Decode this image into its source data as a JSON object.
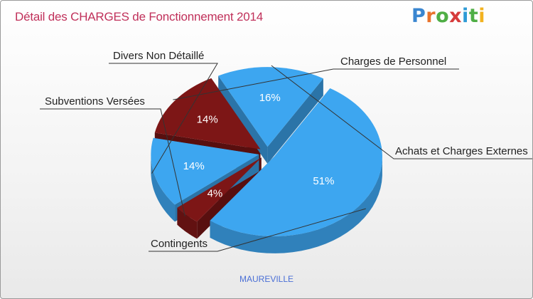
{
  "title": "Détail des CHARGES de Fonctionnement 2014",
  "logo_text": [
    "P",
    "r",
    "o",
    "x",
    "i",
    "t",
    "i"
  ],
  "logo_colors": [
    "#3a86d0",
    "#e9732c",
    "#4fae45",
    "#d63b3b",
    "#2f9bd6",
    "#4fae45",
    "#f2b21f"
  ],
  "footer": "MAUREVILLE",
  "chart_data": {
    "type": "pie",
    "title": "Détail des CHARGES de Fonctionnement 2014",
    "three_d": true,
    "exploded": true,
    "legend": "none",
    "slices": [
      {
        "name": "Charges de Personnel",
        "value": 14,
        "label": "14%",
        "color": "#7d1616"
      },
      {
        "name": "Achats et Charges Externes",
        "value": 16,
        "label": "16%",
        "color": "#3da6f0"
      },
      {
        "name": "Contingents",
        "value": 51,
        "label": "51%",
        "color": "#3da6f0"
      },
      {
        "name": "Subventions Versées",
        "value": 4,
        "label": "4%",
        "color": "#7d1616"
      },
      {
        "name": "Divers Non Détaillé",
        "value": 14,
        "label": "14%",
        "color": "#3da6f0"
      }
    ]
  }
}
